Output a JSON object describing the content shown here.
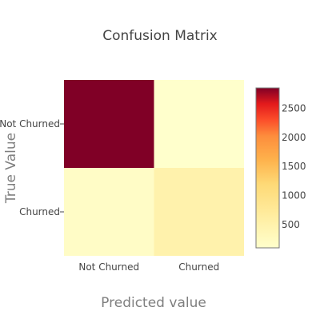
{
  "chart_data": {
    "type": "heatmap",
    "title": "Confusion Matrix",
    "xlabel": "Predicted value",
    "ylabel": "True Value",
    "x_categories": [
      "Not Churned",
      "Churned"
    ],
    "y_categories": [
      "Not Churned",
      "Churned"
    ],
    "z": [
      [
        2850,
        100
      ],
      [
        180,
        500
      ]
    ],
    "colorscale": "YlOrRd",
    "zmin": 100,
    "zmax": 2850,
    "colorbar_ticks": [
      500,
      1000,
      1500,
      2000,
      2500
    ],
    "grid": false,
    "legend_placement": "right"
  }
}
